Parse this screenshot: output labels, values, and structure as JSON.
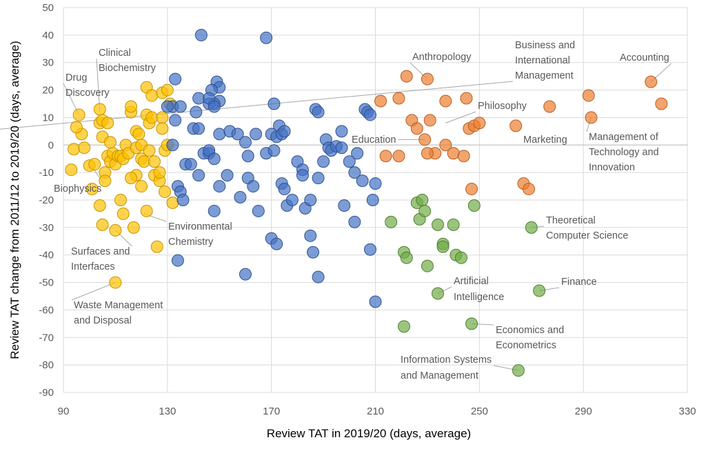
{
  "chart_data": {
    "type": "scatter",
    "title": "",
    "xlabel": "Review TAT in 2019/20 (days, average)",
    "ylabel": "Review TAT change from 2011/12 to 2019/20 (days, average)",
    "xlim": [
      90,
      330
    ],
    "ylim": [
      -90,
      50
    ],
    "xticks": [
      "90",
      "130",
      "170",
      "210",
      "250",
      "290",
      "330"
    ],
    "yticks": [
      "-90",
      "-80",
      "-70",
      "-60",
      "-50",
      "-40",
      "-30",
      "-20",
      "-10",
      "0",
      "10",
      "20",
      "30",
      "40",
      "50"
    ],
    "grid": true,
    "series": [
      {
        "color": "#FFC000",
        "stroke": "#C59300",
        "points": [
          [
            96,
            11
          ],
          [
            97,
            4
          ],
          [
            95,
            6.5
          ],
          [
            94,
            -1.5
          ],
          [
            98,
            -1
          ],
          [
            93,
            -9
          ],
          [
            100,
            -7.5
          ],
          [
            101,
            -16
          ],
          [
            102,
            -7
          ],
          [
            104,
            -22
          ],
          [
            104,
            8
          ],
          [
            104,
            13
          ],
          [
            105,
            9
          ],
          [
            105,
            3
          ],
          [
            107,
            8
          ],
          [
            107,
            -4
          ],
          [
            106,
            -10
          ],
          [
            106,
            -13
          ],
          [
            108,
            -6
          ],
          [
            108,
            1
          ],
          [
            109,
            -3
          ],
          [
            110,
            -7
          ],
          [
            111,
            -4
          ],
          [
            112,
            -4
          ],
          [
            112,
            -20
          ],
          [
            113,
            -5
          ],
          [
            114,
            0
          ],
          [
            113,
            -25
          ],
          [
            116,
            12
          ],
          [
            116,
            14
          ],
          [
            115,
            -3
          ],
          [
            118,
            5
          ],
          [
            118,
            -1
          ],
          [
            118,
            -11
          ],
          [
            117,
            -30
          ],
          [
            119,
            4
          ],
          [
            120,
            0
          ],
          [
            120,
            -5
          ],
          [
            120,
            -15
          ],
          [
            121,
            -6
          ],
          [
            122,
            21
          ],
          [
            122,
            11
          ],
          [
            122,
            -24
          ],
          [
            123,
            -2
          ],
          [
            123,
            8
          ],
          [
            124,
            18
          ],
          [
            124,
            10
          ],
          [
            125,
            -6
          ],
          [
            125,
            -11
          ],
          [
            126,
            -37
          ],
          [
            127,
            -13
          ],
          [
            127,
            -10
          ],
          [
            128,
            19
          ],
          [
            128,
            10
          ],
          [
            128,
            6
          ],
          [
            129,
            -2
          ],
          [
            129,
            -17
          ],
          [
            130,
            20
          ],
          [
            130,
            0
          ],
          [
            131,
            15
          ],
          [
            132,
            -21
          ],
          [
            105,
            -29
          ],
          [
            110,
            -31
          ],
          [
            110,
            -50
          ],
          [
            116,
            -12
          ]
        ]
      },
      {
        "color": "#4472C4",
        "stroke": "#2F528F",
        "points": [
          [
            143,
            40
          ],
          [
            168,
            39
          ],
          [
            133,
            24
          ],
          [
            149,
            23
          ],
          [
            150,
            21
          ],
          [
            147,
            20
          ],
          [
            150,
            16
          ],
          [
            148,
            15
          ],
          [
            146,
            15
          ],
          [
            142,
            17
          ],
          [
            146,
            17
          ],
          [
            148,
            14
          ],
          [
            132,
            14
          ],
          [
            130,
            14
          ],
          [
            135,
            14
          ],
          [
            133,
            9
          ],
          [
            141,
            12
          ],
          [
            140,
            6
          ],
          [
            142,
            6
          ],
          [
            144,
            -3
          ],
          [
            146,
            -3
          ],
          [
            150,
            4
          ],
          [
            154,
            5
          ],
          [
            157,
            4
          ],
          [
            160,
            1
          ],
          [
            161,
            -4
          ],
          [
            164,
            4
          ],
          [
            168,
            -3
          ],
          [
            170,
            4
          ],
          [
            171,
            15
          ],
          [
            172,
            3
          ],
          [
            173,
            7
          ],
          [
            174,
            4
          ],
          [
            175,
            5
          ],
          [
            171,
            -2
          ],
          [
            132,
            0
          ],
          [
            137,
            -7
          ],
          [
            139,
            -7
          ],
          [
            142,
            -11
          ],
          [
            146,
            -2
          ],
          [
            148,
            -5
          ],
          [
            150,
            -15
          ],
          [
            153,
            -11
          ],
          [
            158,
            -19
          ],
          [
            161,
            -12
          ],
          [
            163,
            -15
          ],
          [
            165,
            -24
          ],
          [
            170,
            -34
          ],
          [
            172,
            -36
          ],
          [
            174,
            -14
          ],
          [
            175,
            -16
          ],
          [
            176,
            -22
          ],
          [
            178,
            -20
          ],
          [
            180,
            -6
          ],
          [
            182,
            -9
          ],
          [
            182,
            -11
          ],
          [
            183,
            -23
          ],
          [
            185,
            -20
          ],
          [
            185,
            -33
          ],
          [
            186,
            -39
          ],
          [
            187,
            13
          ],
          [
            188,
            12
          ],
          [
            188,
            -12
          ],
          [
            188,
            -48
          ],
          [
            190,
            -6
          ],
          [
            191,
            2
          ],
          [
            192,
            -1
          ],
          [
            193,
            -2
          ],
          [
            195,
            -0.5
          ],
          [
            197,
            5
          ],
          [
            197,
            -1
          ],
          [
            198,
            -22
          ],
          [
            200,
            -6
          ],
          [
            202,
            -10
          ],
          [
            202,
            -28
          ],
          [
            203,
            -3
          ],
          [
            205,
            -13
          ],
          [
            206,
            13
          ],
          [
            207,
            12
          ],
          [
            208,
            11
          ],
          [
            208,
            -38
          ],
          [
            209,
            -20
          ],
          [
            210,
            -57
          ],
          [
            210,
            -14
          ],
          [
            148,
            -24
          ],
          [
            134,
            -42
          ],
          [
            160,
            -47
          ],
          [
            134,
            -15
          ],
          [
            135,
            -17
          ],
          [
            136,
            -20
          ]
        ]
      },
      {
        "color": "#ED7D31",
        "stroke": "#B65E20",
        "points": [
          [
            212,
            16
          ],
          [
            219,
            17
          ],
          [
            222,
            25
          ],
          [
            230,
            24
          ],
          [
            237,
            16
          ],
          [
            245,
            17
          ],
          [
            224,
            9
          ],
          [
            231,
            9
          ],
          [
            226,
            6
          ],
          [
            229,
            2
          ],
          [
            233,
            -3
          ],
          [
            237,
            0
          ],
          [
            240,
            -3
          ],
          [
            244,
            -4
          ],
          [
            246,
            6
          ],
          [
            248,
            7
          ],
          [
            250,
            8
          ],
          [
            264,
            7
          ],
          [
            277,
            14
          ],
          [
            292,
            18
          ],
          [
            293,
            10
          ],
          [
            316,
            23
          ],
          [
            320,
            15
          ],
          [
            214,
            -4
          ],
          [
            219,
            -4
          ],
          [
            230,
            -3
          ],
          [
            247,
            -16
          ],
          [
            267,
            -14
          ],
          [
            269,
            -16
          ]
        ]
      },
      {
        "color": "#70AD47",
        "stroke": "#507E32",
        "points": [
          [
            216,
            -28
          ],
          [
            221,
            -39
          ],
          [
            222,
            -41
          ],
          [
            226,
            -21
          ],
          [
            227,
            -27
          ],
          [
            228,
            -20
          ],
          [
            229,
            -24
          ],
          [
            230,
            -44
          ],
          [
            234,
            -29
          ],
          [
            236,
            -36
          ],
          [
            236,
            -37
          ],
          [
            240,
            -29
          ],
          [
            241,
            -40
          ],
          [
            243,
            -41
          ],
          [
            248,
            -22
          ],
          [
            270,
            -30
          ],
          [
            273,
            -53
          ],
          [
            234,
            -54
          ],
          [
            221,
            -66
          ],
          [
            247,
            -65
          ],
          [
            265,
            -82
          ]
        ]
      }
    ],
    "annotations": [
      {
        "text": "Clinical",
        "x": 104,
        "y": 12
      },
      {
        "text": "Biochemistry",
        "x": 0,
        "y": 0
      },
      {
        "text": "Drug",
        "x": 96,
        "y": 11
      },
      {
        "text": "Discovery",
        "x": 0,
        "y": 0
      },
      {
        "text": "Biophysics",
        "x": 101,
        "y": -8
      },
      {
        "text": "Environmental",
        "x": 121,
        "y": -25
      },
      {
        "text": "Chemistry",
        "x": 0,
        "y": 0
      },
      {
        "text": "Surfaces and",
        "x": 110,
        "y": -31
      },
      {
        "text": "Interfaces",
        "x": 0,
        "y": 0
      },
      {
        "text": "Waste Management",
        "x": 110,
        "y": -50
      },
      {
        "text": "and Disposal",
        "x": 0,
        "y": 0
      },
      {
        "text": "Anthropology",
        "x": 230,
        "y": 24
      },
      {
        "text": "Philosophy",
        "x": 237,
        "y": 8
      },
      {
        "text": "Education",
        "x": 229,
        "y": 2
      },
      {
        "text": "Business and",
        "x": 277,
        "y": 14
      },
      {
        "text": "International",
        "x": 0,
        "y": 0
      },
      {
        "text": "Management",
        "x": 0,
        "y": 0
      },
      {
        "text": "Accounting",
        "x": 316,
        "y": 23
      },
      {
        "text": "Marketing",
        "x": 0,
        "y": 0
      },
      {
        "text": "Management of",
        "x": 293,
        "y": 10
      },
      {
        "text": "Technology and",
        "x": 0,
        "y": 0
      },
      {
        "text": "Innovation",
        "x": 0,
        "y": 0
      },
      {
        "text": "Theoretical",
        "x": 270,
        "y": -30
      },
      {
        "text": "Computer Science",
        "x": 0,
        "y": 0
      },
      {
        "text": "Finance",
        "x": 273,
        "y": -53
      },
      {
        "text": "Artificial",
        "x": 234,
        "y": -54
      },
      {
        "text": "Intelligence",
        "x": 0,
        "y": 0
      },
      {
        "text": "Economics and",
        "x": 247,
        "y": -65
      },
      {
        "text": "Econometrics",
        "x": 0,
        "y": 0
      },
      {
        "text": "Information Systems",
        "x": 265,
        "y": -82
      },
      {
        "text": "and Management",
        "x": 0,
        "y": 0
      }
    ]
  }
}
